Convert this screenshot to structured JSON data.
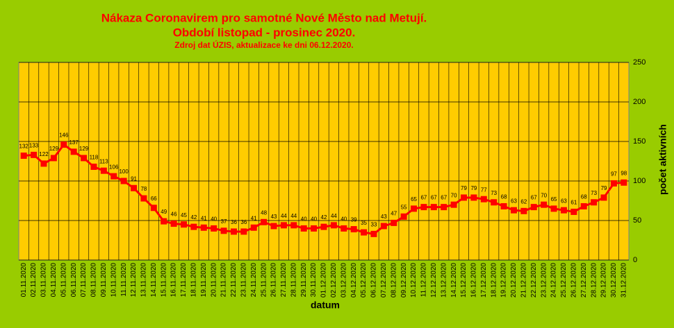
{
  "chart_data": {
    "type": "line",
    "title": [
      "Nákaza Coronavirem pro samotné Nové Město nad Metují.",
      "Období listopad - prosinec 2020."
    ],
    "subtitle": "Zdroj dat ÚZIS, aktualizace ke dni 06.12.2020.",
    "x_label": "datum",
    "y_label": "počet aktivních",
    "categories": [
      "01.11.2020",
      "02.11.2020",
      "03.11.2020",
      "04.11.2020",
      "05.11.2020",
      "06.11.2020",
      "07.11.2020",
      "08.11.2020",
      "09.11.2020",
      "10.11.2020",
      "11.11.2020",
      "12.11.2020",
      "13.11.2020",
      "14.11.2020",
      "15.11.2020",
      "16.11.2020",
      "17.11.2020",
      "18.11.2020",
      "19.11.2020",
      "20.11.2020",
      "21.11.2020",
      "22.11.2020",
      "23.11.2020",
      "24.11.2020",
      "25.11.2020",
      "26.11.2020",
      "27.11.2020",
      "28.11.2020",
      "29.11.2020",
      "30.11.2020",
      "01.12.2020",
      "02.12.2020",
      "03.12.2020",
      "04.12.2020",
      "05.12.2020",
      "06.12.2020",
      "07.12.2020",
      "08.12.2020",
      "09.12.2020",
      "10.12.2020",
      "11.12.2020",
      "12.12.2020",
      "13.12.2020",
      "14.12.2020",
      "15.12.2020",
      "16.12.2020",
      "17.12.2020",
      "18.12.2020",
      "19.12.2020",
      "20.12.2020",
      "21.12.2020",
      "22.12.2020",
      "23.12.2020",
      "24.12.2020",
      "25.12.2020",
      "26.12.2020",
      "27.12.2020",
      "28.12.2020",
      "29.12.2020",
      "30.12.2020",
      "31.12.2020"
    ],
    "values": [
      132,
      133,
      122,
      129,
      146,
      137,
      129,
      118,
      113,
      106,
      100,
      91,
      78,
      66,
      49,
      46,
      45,
      42,
      41,
      40,
      37,
      36,
      36,
      41,
      48,
      43,
      44,
      44,
      40,
      40,
      42,
      44,
      40,
      39,
      35,
      33,
      43,
      47,
      55,
      65,
      67,
      67,
      67,
      70,
      79,
      79,
      77,
      73,
      68,
      63,
      62,
      67,
      70,
      65,
      63,
      61,
      68,
      73,
      79,
      97,
      98
    ],
    "color": "#ff0000",
    "ylim": [
      0,
      250
    ],
    "yticks": [
      0,
      50,
      100,
      150,
      200,
      250
    ],
    "grid": true
  }
}
